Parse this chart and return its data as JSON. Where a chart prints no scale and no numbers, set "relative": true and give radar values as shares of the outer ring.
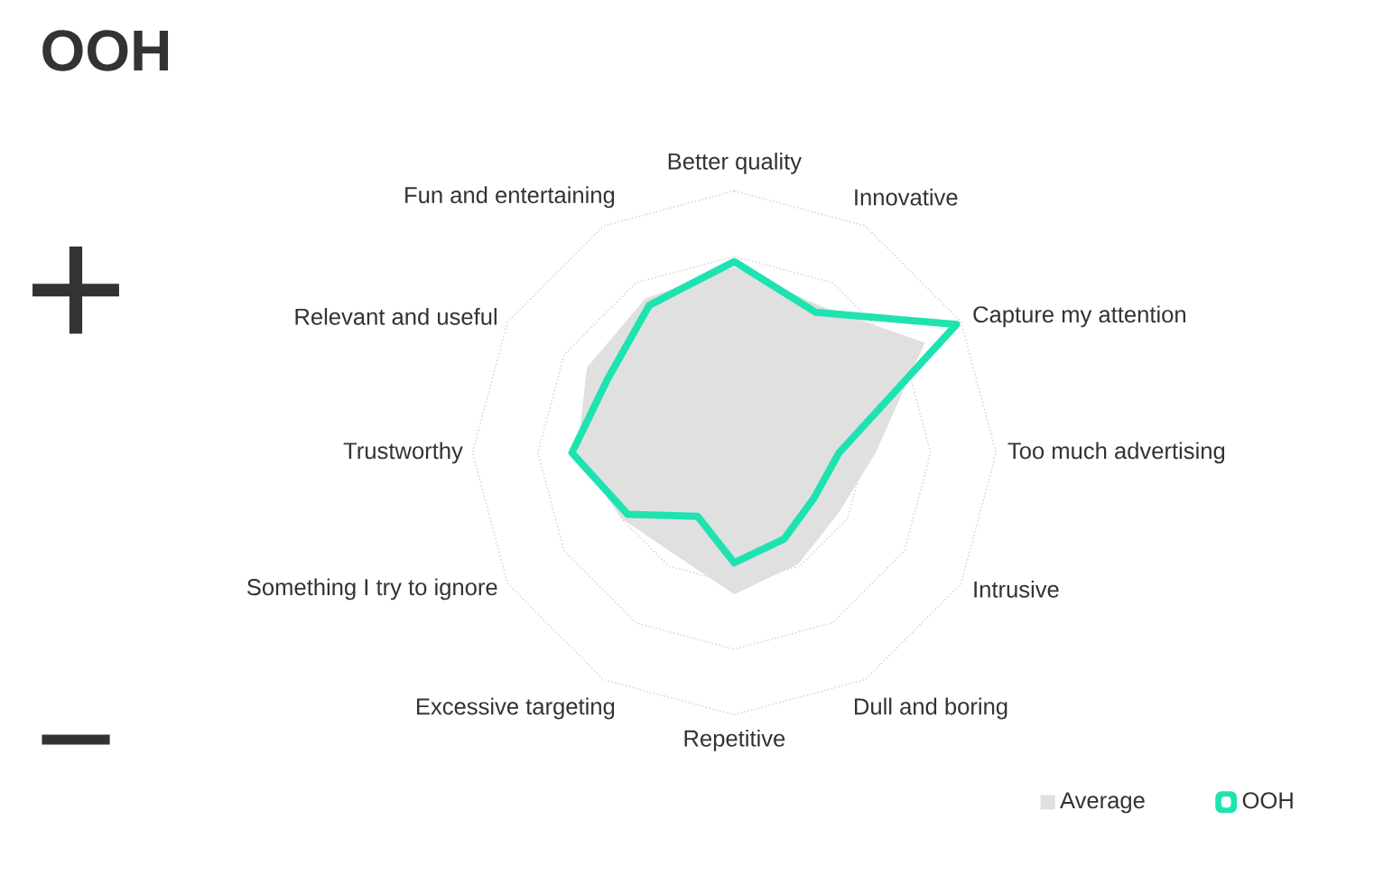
{
  "chart_data": {
    "type": "radar",
    "title": "OOH",
    "categories": [
      "Better quality",
      "Innovative",
      "Capture my attention",
      "Too much advertising",
      "Intrusive",
      "Dull and boring",
      "Repetitive",
      "Excessive targeting",
      "Something I try to ignore",
      "Trustworthy",
      "Relevant and useful",
      "Fun and entertaining"
    ],
    "relative": true,
    "grid": true,
    "legend": "bottom right",
    "series": [
      {
        "name": "Average",
        "type": "area",
        "color": "#e0e0e0",
        "values": [
          0.71,
          0.65,
          0.84,
          0.54,
          0.46,
          0.49,
          0.54,
          0.45,
          0.5,
          0.6,
          0.65,
          0.68
        ]
      },
      {
        "name": "OOH",
        "color": "#1ee3b0",
        "values": [
          0.73,
          0.62,
          0.98,
          0.4,
          0.35,
          0.38,
          0.42,
          0.28,
          0.47,
          0.62,
          0.56,
          0.65
        ]
      }
    ],
    "annotations": [
      "+",
      "−"
    ]
  }
}
